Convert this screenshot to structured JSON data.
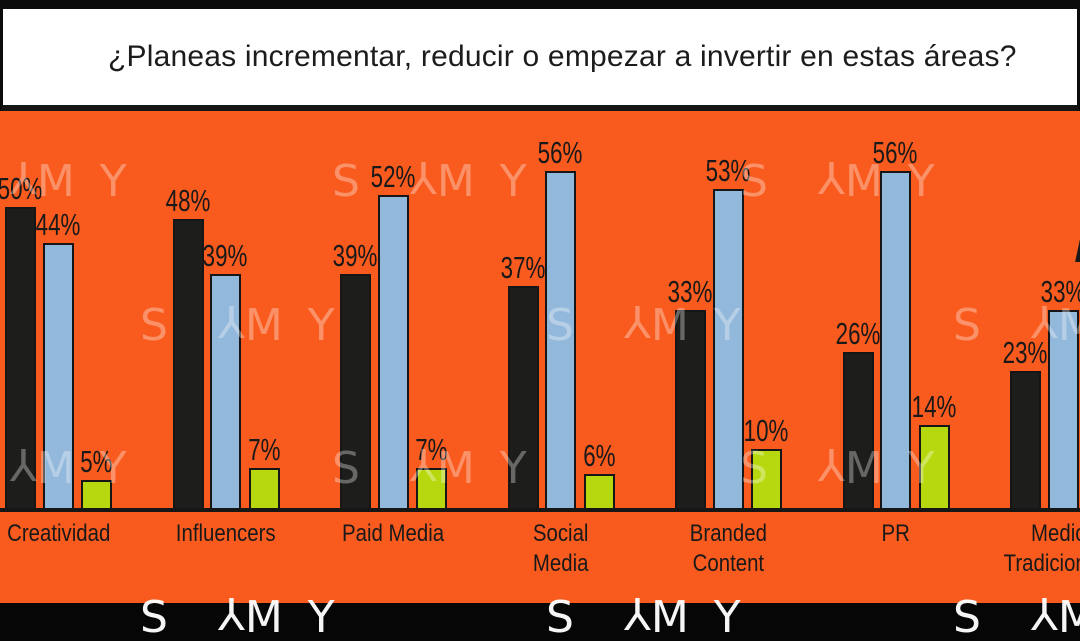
{
  "title": "¿Planeas incrementar, reducir o empezar a invertir en estas áreas?",
  "watermark": {
    "brand": "SAMY"
  },
  "colors": {
    "plot_background": "#f95b1e",
    "frame_black": "#0b0b0b",
    "bar_black": "#1d1d1b",
    "bar_blue": "#92b8db",
    "bar_lime": "#b7d80e",
    "label_text": "#191919"
  },
  "truncated": {
    "title_right_edge": true,
    "last_category_label": true,
    "last_group_third_bar_label": "only a tiny sliver visible at right edge"
  },
  "chart_data": {
    "type": "bar",
    "title": "¿Planeas incrementar, reducir o empezar a invertir en estas áreas?",
    "categories": [
      "Creatividad",
      "Influencers",
      "Paid Media",
      "Social Media",
      "Branded Content",
      "PR",
      "Medios Tradicionales"
    ],
    "category_lines": [
      [
        "Creatividad"
      ],
      [
        "Influencers"
      ],
      [
        "Paid Media"
      ],
      [
        "Social",
        "Media"
      ],
      [
        "Branded",
        "Content"
      ],
      [
        "PR"
      ],
      [
        "Medios",
        "Tradicionales"
      ]
    ],
    "series": [
      {
        "name": "black-bar-series",
        "color": "#1d1d1b",
        "values": [
          50,
          48,
          39,
          37,
          33,
          26,
          23
        ]
      },
      {
        "name": "blue-bar-series",
        "color": "#92b8db",
        "values": [
          44,
          39,
          52,
          56,
          53,
          56,
          33
        ]
      },
      {
        "name": "lime-bar-series",
        "color": "#b7d80e",
        "values": [
          5,
          7,
          7,
          6,
          10,
          14,
          null
        ]
      }
    ],
    "value_suffix": "%",
    "xlabel": "",
    "ylabel": "",
    "ylim": [
      0,
      60
    ],
    "grid": false,
    "legend": false
  }
}
